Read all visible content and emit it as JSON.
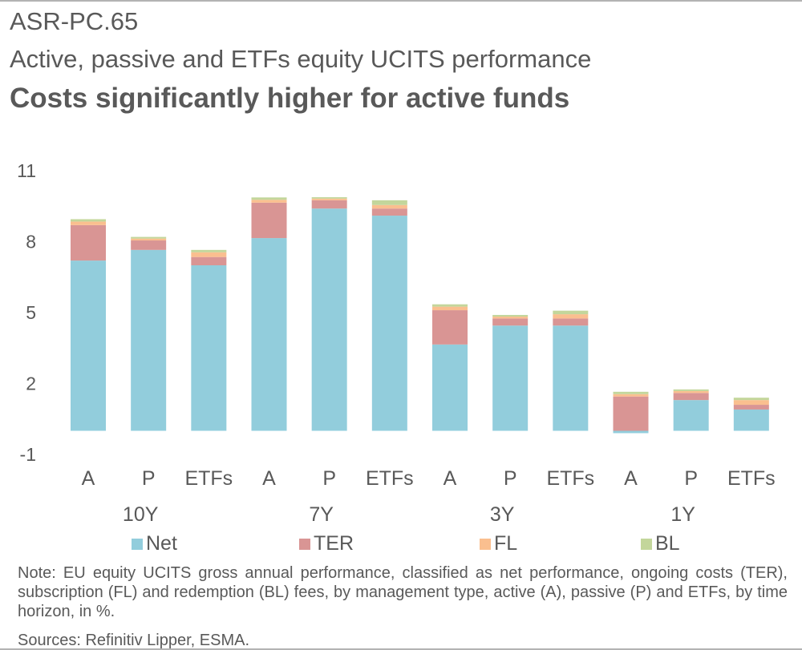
{
  "header": {
    "code": "ASR-PC.65",
    "subtitle": "Active, passive and ETFs equity UCITS performance",
    "title": "Costs significantly higher for active funds"
  },
  "footer": {
    "note": "Note: EU equity UCITS gross annual performance, classified as net performance, ongoing costs (TER), subscription (FL) and redemption (BL) fees, by management type, active (A), passive (P) and ETFs, by time horizon, in %.",
    "source": "Sources: Refinitiv Lipper, ESMA."
  },
  "colors": {
    "Net": "#92cddc",
    "TER": "#d99594",
    "FL": "#fabf8f",
    "BL": "#c3d69b"
  },
  "chart_data": {
    "type": "bar",
    "stacked": true,
    "ylim": [
      -1,
      11
    ],
    "yticks": [
      -1,
      2,
      5,
      8,
      11
    ],
    "grid": false,
    "legend_position": "bottom",
    "groups": [
      "10Y",
      "7Y",
      "3Y",
      "1Y"
    ],
    "categories": [
      "A",
      "P",
      "ETFs",
      "A",
      "P",
      "ETFs",
      "A",
      "P",
      "ETFs",
      "A",
      "P",
      "ETFs"
    ],
    "category_group": [
      "10Y",
      "10Y",
      "10Y",
      "7Y",
      "7Y",
      "7Y",
      "3Y",
      "3Y",
      "3Y",
      "1Y",
      "1Y",
      "1Y"
    ],
    "series": [
      {
        "name": "Net",
        "values": [
          7.2,
          7.65,
          7.0,
          8.15,
          9.4,
          9.1,
          3.65,
          4.45,
          4.45,
          -0.1,
          1.3,
          0.9
        ]
      },
      {
        "name": "TER",
        "values": [
          1.5,
          0.4,
          0.35,
          1.5,
          0.35,
          0.3,
          1.45,
          0.3,
          0.3,
          1.45,
          0.3,
          0.2
        ]
      },
      {
        "name": "FL",
        "values": [
          0.15,
          0.08,
          0.2,
          0.12,
          0.07,
          0.15,
          0.15,
          0.08,
          0.18,
          0.1,
          0.08,
          0.2
        ]
      },
      {
        "name": "BL",
        "values": [
          0.1,
          0.07,
          0.1,
          0.1,
          0.06,
          0.2,
          0.1,
          0.07,
          0.15,
          0.1,
          0.07,
          0.1
        ]
      }
    ]
  }
}
